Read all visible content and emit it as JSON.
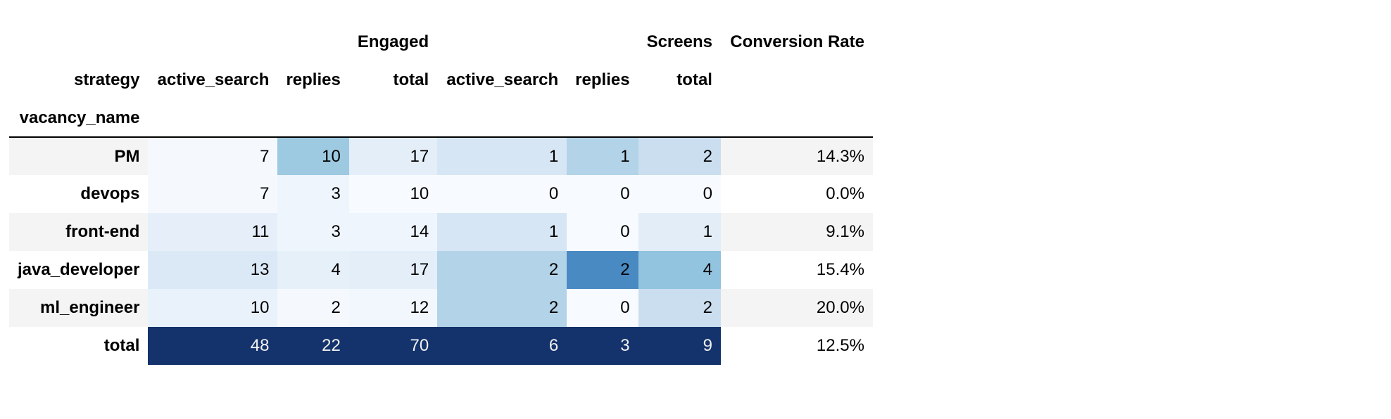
{
  "table": {
    "header_groups": {
      "engaged": "Engaged",
      "screens": "Screens",
      "conversion_rate": "Conversion Rate"
    },
    "columns_level_name": "strategy",
    "sub_columns": [
      "active_search",
      "replies",
      "total",
      "active_search",
      "replies",
      "total"
    ],
    "index_name": "vacancy_name",
    "rows": [
      {
        "name": "PM",
        "cells": [
          {
            "value": "7",
            "bg": "#f5f9fe",
            "fg": "#000000"
          },
          {
            "value": "10",
            "bg": "#9dc9e1",
            "fg": "#000000"
          },
          {
            "value": "17",
            "bg": "#e3eef9",
            "fg": "#000000"
          },
          {
            "value": "1",
            "bg": "#d6e6f4",
            "fg": "#000000"
          },
          {
            "value": "1",
            "bg": "#b3d3e8",
            "fg": "#000000"
          },
          {
            "value": "2",
            "bg": "#cadef0",
            "fg": "#000000"
          }
        ],
        "rate": "14.3%"
      },
      {
        "name": "devops",
        "cells": [
          {
            "value": "7",
            "bg": "#f5f9fe",
            "fg": "#000000"
          },
          {
            "value": "3",
            "bg": "#eef5fc",
            "fg": "#000000"
          },
          {
            "value": "10",
            "bg": "#f7fbff",
            "fg": "#000000"
          },
          {
            "value": "0",
            "bg": "#f7fbff",
            "fg": "#000000"
          },
          {
            "value": "0",
            "bg": "#f7fbff",
            "fg": "#000000"
          },
          {
            "value": "0",
            "bg": "#f7fbff",
            "fg": "#000000"
          }
        ],
        "rate": "0.0%"
      },
      {
        "name": "front-end",
        "cells": [
          {
            "value": "11",
            "bg": "#e6eff9",
            "fg": "#000000"
          },
          {
            "value": "3",
            "bg": "#eef5fc",
            "fg": "#000000"
          },
          {
            "value": "14",
            "bg": "#eef5fc",
            "fg": "#000000"
          },
          {
            "value": "1",
            "bg": "#d6e6f4",
            "fg": "#000000"
          },
          {
            "value": "0",
            "bg": "#f7fbff",
            "fg": "#000000"
          },
          {
            "value": "1",
            "bg": "#e2edf8",
            "fg": "#000000"
          }
        ],
        "rate": "9.1%"
      },
      {
        "name": "java_developer",
        "cells": [
          {
            "value": "13",
            "bg": "#dbe9f6",
            "fg": "#000000"
          },
          {
            "value": "4",
            "bg": "#e6f0f9",
            "fg": "#000000"
          },
          {
            "value": "17",
            "bg": "#e3eef9",
            "fg": "#000000"
          },
          {
            "value": "2",
            "bg": "#b3d3e8",
            "fg": "#000000"
          },
          {
            "value": "2",
            "bg": "#4a8ac2",
            "fg": "#000000"
          },
          {
            "value": "4",
            "bg": "#92c4df",
            "fg": "#000000"
          }
        ],
        "rate": "15.4%"
      },
      {
        "name": "ml_engineer",
        "cells": [
          {
            "value": "10",
            "bg": "#e9f2fb",
            "fg": "#000000"
          },
          {
            "value": "2",
            "bg": "#f5f9fe",
            "fg": "#000000"
          },
          {
            "value": "12",
            "bg": "#f2f7fd",
            "fg": "#000000"
          },
          {
            "value": "2",
            "bg": "#b3d3e8",
            "fg": "#000000"
          },
          {
            "value": "0",
            "bg": "#f7fbff",
            "fg": "#000000"
          },
          {
            "value": "2",
            "bg": "#cadef0",
            "fg": "#000000"
          }
        ],
        "rate": "20.0%"
      },
      {
        "name": "total",
        "cells": [
          {
            "value": "48",
            "bg": "#14326b",
            "fg": "#f1f1f1"
          },
          {
            "value": "22",
            "bg": "#14326b",
            "fg": "#f1f1f1"
          },
          {
            "value": "70",
            "bg": "#14326b",
            "fg": "#f1f1f1"
          },
          {
            "value": "6",
            "bg": "#14326b",
            "fg": "#f1f1f1"
          },
          {
            "value": "3",
            "bg": "#14326b",
            "fg": "#f1f1f1"
          },
          {
            "value": "9",
            "bg": "#14326b",
            "fg": "#f1f1f1"
          }
        ],
        "rate": "12.5%"
      }
    ]
  }
}
